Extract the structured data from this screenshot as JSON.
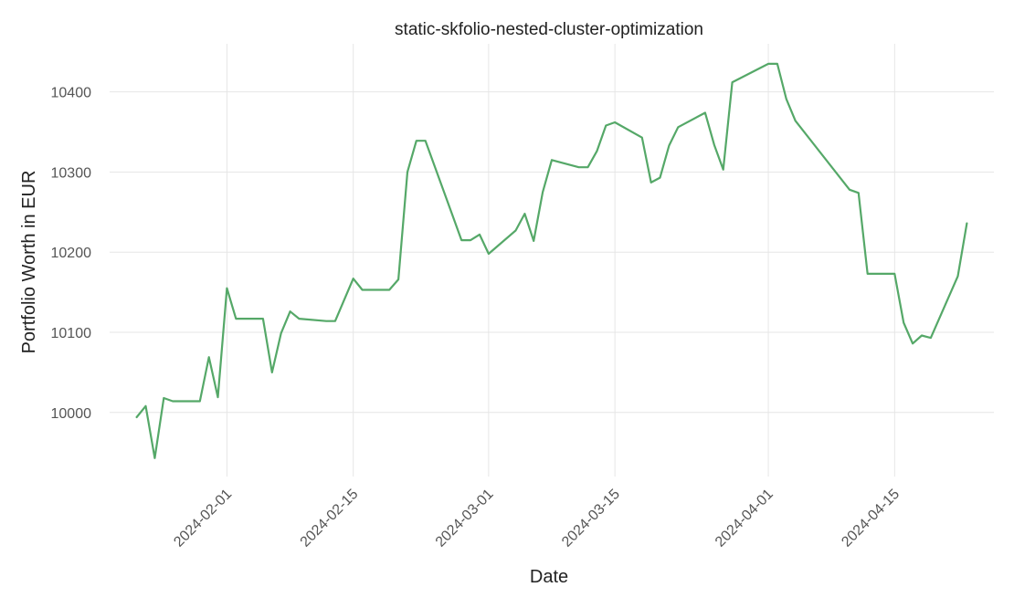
{
  "chart_data": {
    "type": "line",
    "title": "static-skfolio-nested-cluster-optimization",
    "xlabel": "Date",
    "ylabel": "Portfolio Worth in EUR",
    "xlim": [
      "2024-01-19",
      "2024-04-26"
    ],
    "ylim": [
      9920,
      10460
    ],
    "grid": true,
    "legend": "none",
    "line_color": "#55a868",
    "x_ticks": [
      "2024-02-01",
      "2024-02-15",
      "2024-03-01",
      "2024-03-15",
      "2024-04-01",
      "2024-04-15"
    ],
    "y_ticks": [
      10000,
      10100,
      10200,
      10300,
      10400
    ],
    "series": [
      {
        "x": [
          "2024-01-22",
          "2024-01-23",
          "2024-01-24",
          "2024-01-25",
          "2024-01-26",
          "2024-01-29",
          "2024-01-30",
          "2024-01-31",
          "2024-02-01",
          "2024-02-02",
          "2024-02-05",
          "2024-02-06",
          "2024-02-07",
          "2024-02-08",
          "2024-02-09",
          "2024-02-12",
          "2024-02-13",
          "2024-02-15",
          "2024-02-16",
          "2024-02-19",
          "2024-02-20",
          "2024-02-21",
          "2024-02-22",
          "2024-02-23",
          "2024-02-26",
          "2024-02-27",
          "2024-02-28",
          "2024-02-29",
          "2024-03-01",
          "2024-03-04",
          "2024-03-05",
          "2024-03-06",
          "2024-03-07",
          "2024-03-08",
          "2024-03-11",
          "2024-03-12",
          "2024-03-13",
          "2024-03-14",
          "2024-03-15",
          "2024-03-18",
          "2024-03-19",
          "2024-03-20",
          "2024-03-21",
          "2024-03-22",
          "2024-03-25",
          "2024-03-26",
          "2024-03-27",
          "2024-03-28",
          "2024-04-01",
          "2024-04-02",
          "2024-04-03",
          "2024-04-04",
          "2024-04-10",
          "2024-04-11",
          "2024-04-12",
          "2024-04-15",
          "2024-04-16",
          "2024-04-17",
          "2024-04-18",
          "2024-04-19",
          "2024-04-22",
          "2024-04-23"
        ],
        "values": [
          9994,
          10008,
          9943,
          10018,
          10014,
          10014,
          10069,
          10019,
          10155,
          10117,
          10117,
          10050,
          10099,
          10126,
          10117,
          10114,
          10114,
          10167,
          10153,
          10153,
          10166,
          10300,
          10339,
          10339,
          10246,
          10215,
          10215,
          10222,
          10198,
          10227,
          10248,
          10214,
          10275,
          10315,
          10306,
          10306,
          10326,
          10358,
          10362,
          10343,
          10287,
          10293,
          10333,
          10356,
          10374,
          10334,
          10303,
          10412,
          10435,
          10435,
          10391,
          10364,
          10278,
          10274,
          10173,
          10173,
          10112,
          10086,
          10096,
          10093,
          10170,
          10236
        ]
      }
    ]
  }
}
